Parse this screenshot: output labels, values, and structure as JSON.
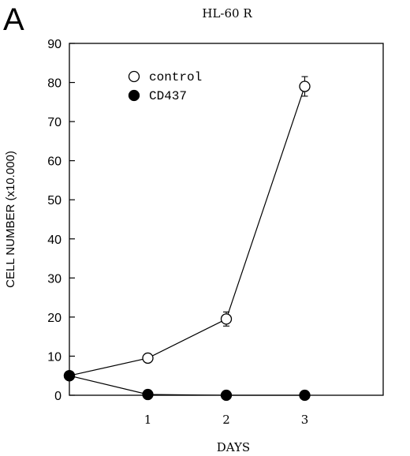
{
  "panel_letter": "A",
  "chart_data": {
    "type": "line",
    "title": "HL-60 R",
    "xlabel": "DAYS",
    "ylabel": "CELL NUMBER (x10.000)",
    "xlim": [
      0,
      4
    ],
    "ylim": [
      0,
      90
    ],
    "xticks": [
      1,
      2,
      3
    ],
    "yticks": [
      0,
      10,
      20,
      30,
      40,
      50,
      60,
      70,
      80,
      90
    ],
    "legend_position": "top-left",
    "grid": false,
    "series": [
      {
        "name": "control",
        "marker": "open-circle",
        "x": [
          0,
          1,
          2,
          3
        ],
        "y": [
          5,
          9.5,
          19.5,
          79
        ],
        "yerr": [
          0,
          0.5,
          1.8,
          2.5
        ]
      },
      {
        "name": "CD437",
        "marker": "filled-circle",
        "x": [
          0,
          1,
          2,
          3
        ],
        "y": [
          5,
          0.2,
          0,
          0
        ],
        "yerr": [
          0,
          0,
          0,
          0
        ]
      }
    ]
  }
}
